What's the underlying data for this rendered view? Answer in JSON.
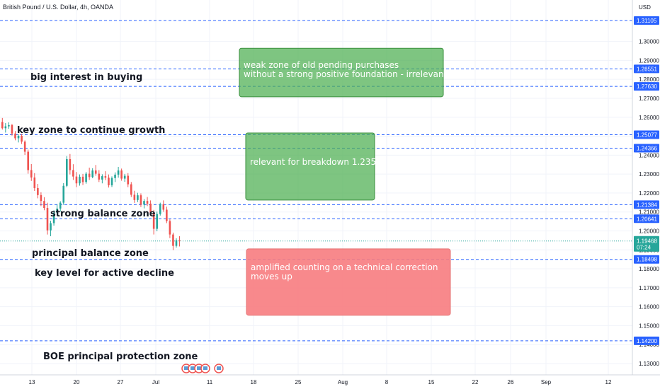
{
  "header": {
    "title": "British Pound / U.S. Dollar, 4h, OANDA",
    "currency": "USD"
  },
  "colors": {
    "up": "#26a69a",
    "down": "#ef5350",
    "level_line": "#2962ff",
    "tag_bg": "#2962ff",
    "green_box": "#4caf50",
    "red_box": "#f77c80",
    "price_tag": "#26a69a"
  },
  "chart_data": {
    "type": "candlestick",
    "title": "British Pound / U.S. Dollar, 4h, OANDA",
    "ylabel": "USD",
    "ylim": [
      1.125,
      1.316
    ],
    "y_ticks": [
      1.3,
      1.29,
      1.28,
      1.27,
      1.26,
      1.25,
      1.24,
      1.23,
      1.22,
      1.21,
      1.2,
      1.19,
      1.18,
      1.17,
      1.16,
      1.15,
      1.14,
      1.13
    ],
    "x_ticks": [
      "13",
      "20",
      "27",
      "Jul",
      "11",
      "18",
      "25",
      "Aug",
      "8",
      "15",
      "22",
      "26",
      "Sep",
      "12"
    ],
    "grid": true,
    "levels": [
      1.31105,
      1.28551,
      1.2763,
      1.25077,
      1.24366,
      1.21384,
      1.20641,
      1.18498,
      1.142
    ],
    "current_price": "1.19468",
    "countdown": "07:24",
    "annotations": [
      "big interest in buying",
      "key zone to continue growth",
      "strong balance zone",
      "principal balance zone",
      "key level for active decline",
      "BOE principal protection zone"
    ],
    "boxes": [
      {
        "lines": [
          "weak  zone of old pending purchases",
          "without a strong positive foundation - irrelevant"
        ],
        "color": "green",
        "y_range": [
          1.2708,
          1.2964
        ]
      },
      {
        "lines": [
          "relevant for breakdown 1.2350"
        ],
        "color": "green",
        "y_range": [
          1.2163,
          1.2517
        ]
      },
      {
        "lines": [
          "amplified counting on a technical correction",
          "moves up"
        ],
        "color": "red",
        "y_range": [
          1.1555,
          1.1905
        ]
      }
    ],
    "candles": [
      [
        1.2575,
        1.2596,
        1.2535,
        1.2542
      ],
      [
        1.2542,
        1.2569,
        1.2519,
        1.2552
      ],
      [
        1.2552,
        1.2573,
        1.2539,
        1.2558
      ],
      [
        1.2558,
        1.2565,
        1.2503,
        1.2514
      ],
      [
        1.2514,
        1.2527,
        1.2478,
        1.2489
      ],
      [
        1.2489,
        1.2511,
        1.2467,
        1.2502
      ],
      [
        1.2502,
        1.2513,
        1.2459,
        1.2471
      ],
      [
        1.2471,
        1.2478,
        1.2401,
        1.2418
      ],
      [
        1.2418,
        1.2429,
        1.2302,
        1.2321
      ],
      [
        1.2321,
        1.2353,
        1.2264,
        1.2282
      ],
      [
        1.2282,
        1.2305,
        1.2211,
        1.2226
      ],
      [
        1.2226,
        1.2248,
        1.2172,
        1.2189
      ],
      [
        1.2189,
        1.2204,
        1.2131,
        1.2158
      ],
      [
        1.2158,
        1.2178,
        1.2109,
        1.2121
      ],
      [
        1.2121,
        1.2149,
        1.1981,
        1.2003
      ],
      [
        1.2003,
        1.2054,
        1.1972,
        1.2041
      ],
      [
        1.2041,
        1.2109,
        1.2028,
        1.2096
      ],
      [
        1.2096,
        1.2142,
        1.2081,
        1.2118
      ],
      [
        1.2118,
        1.2157,
        1.2102,
        1.2149
      ],
      [
        1.2149,
        1.2252,
        1.2138,
        1.2238
      ],
      [
        1.2238,
        1.2395,
        1.2231,
        1.2379
      ],
      [
        1.2379,
        1.2406,
        1.2298,
        1.2321
      ],
      [
        1.2321,
        1.2352,
        1.2269,
        1.2287
      ],
      [
        1.2287,
        1.2311,
        1.2231,
        1.2251
      ],
      [
        1.2251,
        1.2298,
        1.2239,
        1.2286
      ],
      [
        1.2286,
        1.2301,
        1.2242,
        1.2258
      ],
      [
        1.2258,
        1.2311,
        1.2249,
        1.2302
      ],
      [
        1.2302,
        1.2334,
        1.2269,
        1.2284
      ],
      [
        1.2284,
        1.2331,
        1.2278,
        1.2319
      ],
      [
        1.2319,
        1.2348,
        1.2291,
        1.2302
      ],
      [
        1.2302,
        1.2321,
        1.2258,
        1.2271
      ],
      [
        1.2271,
        1.2299,
        1.2251,
        1.2289
      ],
      [
        1.2289,
        1.2315,
        1.2268,
        1.2281
      ],
      [
        1.2281,
        1.2298,
        1.2229,
        1.2241
      ],
      [
        1.2241,
        1.2288,
        1.2232,
        1.2279
      ],
      [
        1.2279,
        1.2309,
        1.2258,
        1.2297
      ],
      [
        1.2297,
        1.2338,
        1.2281,
        1.2319
      ],
      [
        1.2319,
        1.2329,
        1.2265,
        1.2276
      ],
      [
        1.2276,
        1.2301,
        1.2259,
        1.2291
      ],
      [
        1.2291,
        1.2305,
        1.2231,
        1.2246
      ],
      [
        1.2246,
        1.2258,
        1.2179,
        1.2191
      ],
      [
        1.2191,
        1.2212,
        1.2148,
        1.2163
      ],
      [
        1.2163,
        1.2201,
        1.2152,
        1.2188
      ],
      [
        1.2188,
        1.2198,
        1.2126,
        1.2139
      ],
      [
        1.2139,
        1.2168,
        1.2119,
        1.2158
      ],
      [
        1.2158,
        1.2179,
        1.2131,
        1.2144
      ],
      [
        1.2144,
        1.2161,
        1.2081,
        1.2096
      ],
      [
        1.2096,
        1.2111,
        1.1981,
        1.2011
      ],
      [
        1.2011,
        1.2102,
        1.1998,
        1.2089
      ],
      [
        1.2089,
        1.2149,
        1.2081,
        1.2141
      ],
      [
        1.2141,
        1.2161,
        1.2101,
        1.2112
      ],
      [
        1.2112,
        1.2128,
        1.2041,
        1.2052
      ],
      [
        1.2052,
        1.2061,
        1.1962,
        1.1981
      ],
      [
        1.1981,
        1.1991,
        1.1899,
        1.1921
      ],
      [
        1.1921,
        1.1961,
        1.1912,
        1.1951
      ],
      [
        1.1951,
        1.1972,
        1.1918,
        1.1947
      ]
    ]
  }
}
